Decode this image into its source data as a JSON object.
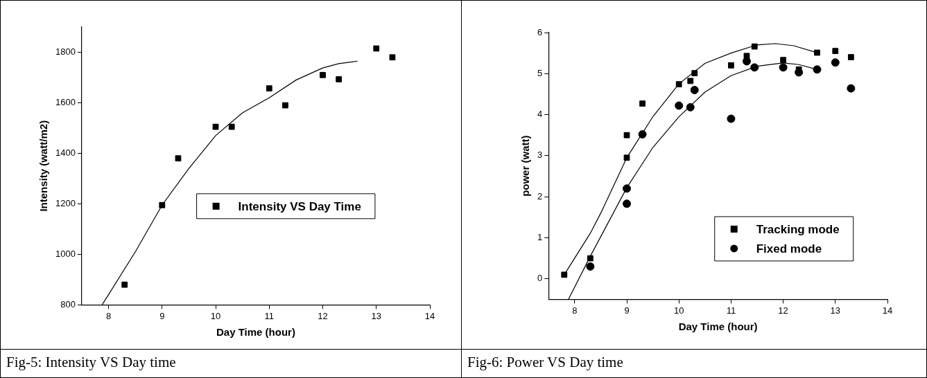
{
  "chart_data": [
    {
      "type": "scatter",
      "xlabel": "Day Time (hour)",
      "ylabel": "Intensity (watt/m2)",
      "annotations": [
        "Fig-5: Intensity VS Day time"
      ],
      "xlim": [
        7.5,
        14
      ],
      "xticks": [
        8,
        9,
        10,
        11,
        12,
        13,
        14
      ],
      "ylim": [
        800,
        1900
      ],
      "yticks": [
        800,
        1000,
        1200,
        1400,
        1600,
        1800
      ],
      "grid": false,
      "legend": "center right",
      "series": [
        {
          "name": "Intensity VS Day Time",
          "color": "#000000",
          "marker": "square",
          "x": [
            8.3,
            9,
            9.3,
            10,
            10.3,
            11,
            11.3,
            12,
            12.3,
            13,
            13.3
          ],
          "values": [
            880,
            1195,
            1380,
            1505,
            1505,
            1657,
            1590,
            1710,
            1693,
            1815,
            1780
          ]
        },
        {
          "type": "line",
          "color": "#000000",
          "marker": "none",
          "x": [
            7.88,
            8.5,
            9,
            9.5,
            10,
            10.5,
            11,
            11.5,
            12,
            12.3,
            12.65
          ],
          "values": [
            800,
            1010,
            1195,
            1340,
            1470,
            1560,
            1620,
            1690,
            1738,
            1755,
            1765
          ]
        }
      ]
    },
    {
      "type": "scatter",
      "xlabel": "Day Time (hour)",
      "ylabel": "power (watt)",
      "annotations": [
        "Fig-6: Power VS Day time"
      ],
      "xlim": [
        7.5,
        14
      ],
      "xticks": [
        8,
        9,
        10,
        11,
        12,
        13,
        14
      ],
      "ylim": [
        -0.5,
        6
      ],
      "yticks": [
        0,
        1,
        2,
        3,
        4,
        5,
        6
      ],
      "grid": false,
      "legend": "bottom right",
      "series": [
        {
          "name": "Tracking mode",
          "color": "#000000",
          "marker": "square",
          "x": [
            7.8,
            8.3,
            9,
            9,
            9.3,
            10,
            10.22,
            10.3,
            11,
            11.3,
            11.45,
            12,
            12.3,
            12.65,
            13,
            13.3
          ],
          "values": [
            0.1,
            0.5,
            3.5,
            2.95,
            4.27,
            4.74,
            4.82,
            5.01,
            5.2,
            5.43,
            5.66,
            5.33,
            5.1,
            5.51,
            5.55,
            5.4
          ]
        },
        {
          "name": "Fixed mode",
          "color": "#000000",
          "marker": "circle",
          "x": [
            8.3,
            9,
            9,
            9.3,
            10,
            10.22,
            10.3,
            11,
            11.3,
            11.45,
            12,
            12.3,
            12.65,
            13,
            13.3
          ],
          "values": [
            0.3,
            2.2,
            1.83,
            3.52,
            4.22,
            4.18,
            4.6,
            3.9,
            5.3,
            5.15,
            5.15,
            5.03,
            5.1,
            5.27,
            4.64
          ]
        },
        {
          "type": "line",
          "color": "#000000",
          "marker": "none",
          "x": [
            7.8,
            8.3,
            8.5,
            9,
            9.5,
            10,
            10.5,
            11,
            11.5,
            11.85,
            12.2,
            12.65
          ],
          "values": [
            0.1,
            1.11,
            1.6,
            2.95,
            3.95,
            4.75,
            5.25,
            5.5,
            5.7,
            5.73,
            5.68,
            5.51
          ]
        },
        {
          "type": "line",
          "color": "#000000",
          "marker": "none",
          "x": [
            7.88,
            8.3,
            9,
            9.5,
            10,
            10.5,
            11,
            11.5,
            12,
            12.3,
            12.65
          ],
          "values": [
            -0.5,
            0.55,
            2.22,
            3.2,
            3.95,
            4.55,
            4.95,
            5.18,
            5.26,
            5.22,
            5.1
          ]
        }
      ]
    }
  ]
}
